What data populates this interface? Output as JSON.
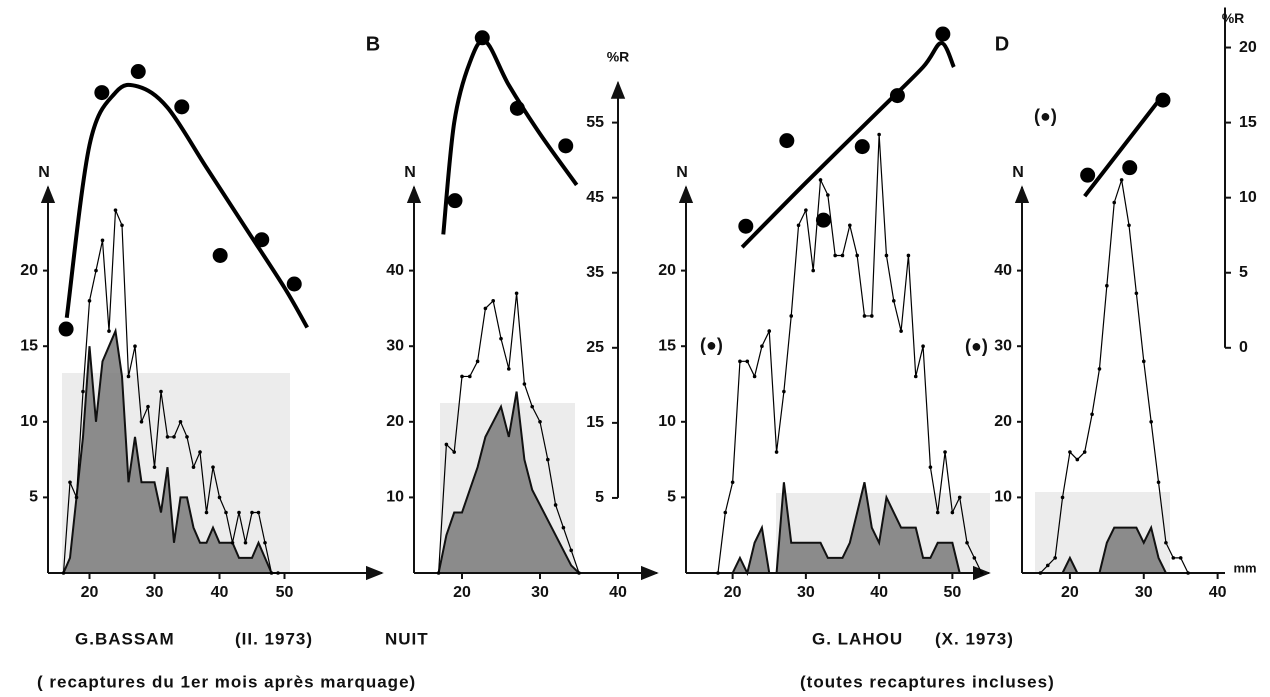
{
  "chart_data": [
    {
      "type": "line",
      "ylabel": "N",
      "xlim": [
        15,
        65
      ],
      "xticks": [
        20,
        30,
        40,
        50
      ],
      "ylim": [
        0,
        25
      ],
      "yticks": [
        5,
        10,
        15,
        20
      ],
      "y2lim": [
        -5,
        70
      ],
      "x": [
        16,
        17,
        18,
        19,
        20,
        21,
        22,
        23,
        24,
        25,
        26,
        27,
        28,
        29,
        30,
        31,
        32,
        33,
        34,
        35,
        36,
        37,
        38,
        39,
        40,
        41,
        42,
        43,
        44,
        45,
        46,
        47,
        48,
        49
      ],
      "series": [
        {
          "style": "line-dots",
          "color": "#000000",
          "values": [
            0,
            6,
            5,
            12,
            18,
            20,
            22,
            16,
            24,
            23,
            13,
            15,
            10,
            11,
            7,
            12,
            9,
            9,
            10,
            9,
            7,
            8,
            4,
            7,
            5,
            4,
            2,
            4,
            2,
            4,
            4,
            2,
            0,
            0
          ]
        },
        {
          "style": "area",
          "color": "#7a7a7a",
          "values": [
            0,
            1,
            5,
            9,
            15,
            10,
            14,
            15,
            16,
            13,
            6,
            9,
            6,
            6,
            6,
            4,
            7,
            2,
            5,
            5,
            3,
            2,
            2,
            3,
            2,
            2,
            2,
            1,
            1,
            1,
            2,
            1,
            0,
            0
          ]
        },
        {
          "style": "dots",
          "axis": "y2",
          "color": "#000000",
          "x": [
            16.4,
            21.9,
            27.5,
            34.2,
            40.1,
            46.5,
            51.5
          ],
          "values": [
            27.5,
            59,
            61.8,
            57.1,
            37.3,
            39.4,
            33.5
          ]
        },
        {
          "style": "curve",
          "axis": "y2",
          "color": "#000000",
          "x": [
            16.5,
            20,
            24,
            27.5,
            32,
            38,
            44,
            50,
            53.5
          ],
          "values": [
            29,
            52,
            59,
            59.8,
            57,
            49,
            41,
            33,
            27.7
          ]
        }
      ]
    },
    {
      "type": "line",
      "title": "B",
      "ylabel": "N",
      "y2label": "%R",
      "xlim": [
        15,
        45
      ],
      "xticks": [
        20,
        30,
        40
      ],
      "ylim": [
        0,
        50
      ],
      "yticks": [
        10,
        20,
        30,
        40
      ],
      "y2lim": [
        -5,
        70
      ],
      "y2ticks": [
        5,
        15,
        25,
        35,
        45,
        55
      ],
      "x": [
        17,
        18,
        19,
        20,
        21,
        22,
        23,
        24,
        25,
        26,
        27,
        28,
        29,
        30,
        31,
        32,
        33,
        34,
        35
      ],
      "series": [
        {
          "style": "line-dots",
          "color": "#000000",
          "values": [
            0,
            17,
            16,
            26,
            26,
            28,
            35,
            36,
            31,
            27,
            37,
            25,
            22,
            20,
            15,
            9,
            6,
            3,
            0
          ]
        },
        {
          "style": "area",
          "color": "#7a7a7a",
          "values": [
            0,
            5,
            8,
            8,
            11,
            14,
            18,
            20,
            22,
            18,
            24,
            15,
            11,
            9,
            7,
            5,
            3,
            1,
            0
          ]
        },
        {
          "style": "dots",
          "axis": "y2",
          "color": "#000000",
          "x": [
            19.1,
            22.6,
            27.1,
            33.3
          ],
          "values": [
            44.6,
            66.3,
            56.9,
            51.9
          ]
        },
        {
          "style": "curve",
          "axis": "y2",
          "color": "#000000",
          "x": [
            17.6,
            19,
            21,
            23,
            26,
            30,
            34.7
          ],
          "values": [
            40.1,
            55,
            63,
            65.8,
            60,
            53.5,
            46.7
          ]
        }
      ]
    },
    {
      "type": "line",
      "ylabel": "N",
      "xlim": [
        15,
        55
      ],
      "xticks": [
        20,
        30,
        40,
        50
      ],
      "ylim": [
        0,
        25
      ],
      "yticks": [
        5,
        10,
        15,
        20
      ],
      "y2lim": [
        -15,
        22.5
      ],
      "annotations": [
        "(●)",
        "(●)"
      ],
      "x": [
        18,
        19,
        20,
        21,
        22,
        23,
        24,
        25,
        26,
        27,
        28,
        29,
        30,
        31,
        32,
        33,
        34,
        35,
        36,
        37,
        38,
        39,
        40,
        41,
        42,
        43,
        44,
        45,
        46,
        47,
        48,
        49,
        50,
        51,
        52,
        53,
        54
      ],
      "series": [
        {
          "style": "line-dots",
          "color": "#000000",
          "values": [
            0,
            4,
            6,
            14,
            14,
            13,
            15,
            16,
            8,
            12,
            17,
            23,
            24,
            20,
            26,
            25,
            21,
            21,
            23,
            21,
            17,
            17,
            29,
            21,
            18,
            16,
            21,
            13,
            15,
            7,
            4,
            8,
            4,
            5,
            2,
            1,
            0
          ]
        },
        {
          "style": "area",
          "color": "#7a7a7a",
          "values": [
            0,
            0,
            0,
            1,
            0,
            2,
            3,
            0,
            0,
            6,
            2,
            2,
            2,
            2,
            2,
            1,
            1,
            1,
            2,
            4,
            6,
            3,
            2,
            5,
            4,
            3,
            3,
            3,
            1,
            1,
            2,
            2,
            2,
            0,
            0,
            0,
            0
          ]
        },
        {
          "style": "dots",
          "axis": "y2",
          "color": "#000000",
          "x": [
            21.8,
            27.4,
            32.4,
            37.7,
            42.5,
            48.7
          ],
          "values": [
            8.1,
            13.8,
            8.5,
            13.4,
            16.8,
            20.9
          ]
        },
        {
          "style": "curve",
          "axis": "y2",
          "color": "#000000",
          "x": [
            21.3,
            30,
            40,
            46,
            48.5,
            50.2
          ],
          "values": [
            6.7,
            11,
            15.8,
            18.7,
            20.3,
            18.7
          ]
        }
      ]
    },
    {
      "type": "line",
      "title": "D",
      "ylabel": "N",
      "y2label": "%R",
      "xunit": "mm",
      "xlim": [
        15,
        41
      ],
      "xticks": [
        20,
        30,
        40
      ],
      "ylim": [
        0,
        50
      ],
      "yticks": [
        10,
        20,
        30,
        40
      ],
      "y2lim": [
        -15,
        22.5
      ],
      "y2ticks": [
        0,
        5,
        10,
        15,
        20
      ],
      "annotations": [
        "(●)"
      ],
      "x": [
        16,
        17,
        18,
        19,
        20,
        21,
        22,
        23,
        24,
        25,
        26,
        27,
        28,
        29,
        30,
        31,
        32,
        33,
        34,
        35,
        36
      ],
      "series": [
        {
          "style": "line-dots",
          "color": "#000000",
          "values": [
            0,
            1,
            2,
            10,
            16,
            15,
            16,
            21,
            27,
            38,
            49,
            52,
            46,
            37,
            28,
            20,
            12,
            4,
            2,
            2,
            0
          ]
        },
        {
          "style": "area",
          "color": "#7a7a7a",
          "values": [
            0,
            0,
            0,
            0,
            2,
            0,
            0,
            0,
            0,
            4,
            6,
            6,
            6,
            6,
            4,
            6,
            2,
            0,
            0,
            0,
            0
          ]
        },
        {
          "style": "dots",
          "axis": "y2",
          "color": "#000000",
          "x": [
            22.4,
            28.1,
            32.6
          ],
          "values": [
            11.5,
            12,
            16.5
          ]
        },
        {
          "style": "curve",
          "axis": "y2",
          "color": "#000000",
          "x": [
            22,
            32.4
          ],
          "values": [
            10.1,
            16.7
          ]
        }
      ]
    }
  ],
  "captions": {
    "left_site": "G.BASSAM",
    "left_date": "(II. 1973)",
    "left_time": "NUIT",
    "left_note": "( recaptures  du 1er mois après marquage)",
    "right_site": "G. LAHOU",
    "right_date": "(X. 1973)",
    "right_note": "(toutes recaptures  incluses)"
  }
}
